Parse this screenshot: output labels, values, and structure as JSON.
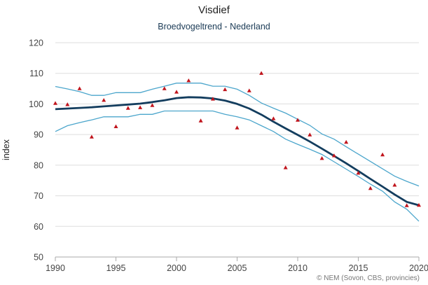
{
  "chart_data": {
    "type": "line",
    "title": "Visdief",
    "subtitle": "Broedvogeltrend - Nederland",
    "xlabel": "",
    "ylabel": "index",
    "credits": "© NEM (Sovon, CBS, provincies)",
    "xlim": [
      1990,
      2020
    ],
    "ylim": [
      50,
      120
    ],
    "x_ticks": [
      1990,
      1995,
      2000,
      2005,
      2010,
      2015,
      2020
    ],
    "y_ticks": [
      50,
      60,
      70,
      80,
      90,
      100,
      110,
      120
    ],
    "grid": "horizontal",
    "colors": {
      "trend": "#133d5e",
      "band": "#4ca6cc",
      "points": "#c0141c",
      "grid": "#dddddd",
      "axis": "#aaaaaa"
    },
    "x": [
      1990,
      1991,
      1992,
      1993,
      1994,
      1995,
      1996,
      1997,
      1998,
      1999,
      2000,
      2001,
      2002,
      2003,
      2004,
      2005,
      2006,
      2007,
      2008,
      2009,
      2010,
      2011,
      2012,
      2013,
      2014,
      2015,
      2016,
      2017,
      2018,
      2019,
      2020
    ],
    "series": [
      {
        "role": "trend",
        "values": [
          98.3,
          98.5,
          98.7,
          98.9,
          99.2,
          99.5,
          99.8,
          100.1,
          100.6,
          101.2,
          101.9,
          102.2,
          102.1,
          101.8,
          101.1,
          100.0,
          98.5,
          96.5,
          94.2,
          92.0,
          89.9,
          87.7,
          85.4,
          83.0,
          80.6,
          78.1,
          75.5,
          73.0,
          70.4,
          68.0,
          66.9
        ]
      },
      {
        "role": "upper-band",
        "values": [
          105.7,
          104.9,
          104.0,
          102.8,
          102.8,
          103.7,
          103.7,
          103.7,
          104.8,
          105.8,
          106.8,
          106.8,
          106.8,
          105.8,
          105.8,
          104.8,
          102.8,
          100.3,
          98.6,
          97.0,
          95.0,
          93.0,
          90.2,
          88.5,
          86.0,
          83.6,
          81.2,
          78.8,
          76.4,
          74.7,
          73.2
        ]
      },
      {
        "role": "lower-band",
        "values": [
          91.0,
          92.9,
          93.9,
          94.8,
          95.8,
          95.8,
          95.8,
          96.6,
          96.6,
          97.7,
          97.7,
          97.7,
          97.7,
          97.7,
          96.6,
          95.8,
          94.8,
          92.9,
          91.0,
          88.5,
          86.8,
          85.2,
          83.5,
          81.1,
          78.7,
          76.3,
          73.8,
          71.5,
          68.0,
          65.6,
          61.7
        ]
      },
      {
        "role": "observed-index",
        "values": [
          100.2,
          99.8,
          105.0,
          89.2,
          101.2,
          92.6,
          98.6,
          98.8,
          99.5,
          105.0,
          103.9,
          107.6,
          94.5,
          101.6,
          104.7,
          92.2,
          104.3,
          110.0,
          95.2,
          79.2,
          94.7,
          89.9,
          82.2,
          83.1,
          87.5,
          77.4,
          72.4,
          83.4,
          73.5,
          66.8,
          66.9
        ]
      }
    ]
  }
}
